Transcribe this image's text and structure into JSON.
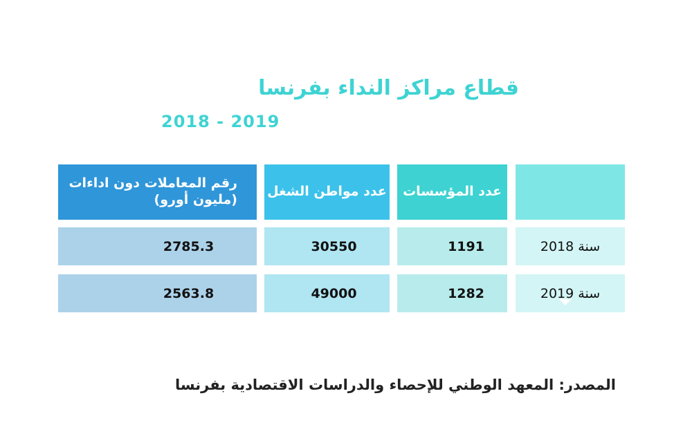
{
  "title": "قطاع مراكز النداء بفرنسا",
  "years": "2018 - 2019",
  "table": {
    "headers": {
      "establishments": "عدد المؤسسات",
      "jobs": "عدد مواطن الشغل",
      "turnover": "رقم المعاملات دون اداءات (مليون أورو)"
    },
    "rows": [
      {
        "label": "سنة 2018",
        "establishments": "1191",
        "jobs": "30550",
        "turnover": "2785.3"
      },
      {
        "label": "سنة 2019",
        "establishments": "1282",
        "jobs": "49000",
        "turnover": "2563.8"
      }
    ]
  },
  "source": "المصدر: المعهد الوطني للإحصاء والدراسات الاقتصادية بفرنسا",
  "colors": {
    "accent": "#3fd3d3",
    "header_dark": "#2f96d9",
    "header_mid": "#3cc2ea"
  }
}
